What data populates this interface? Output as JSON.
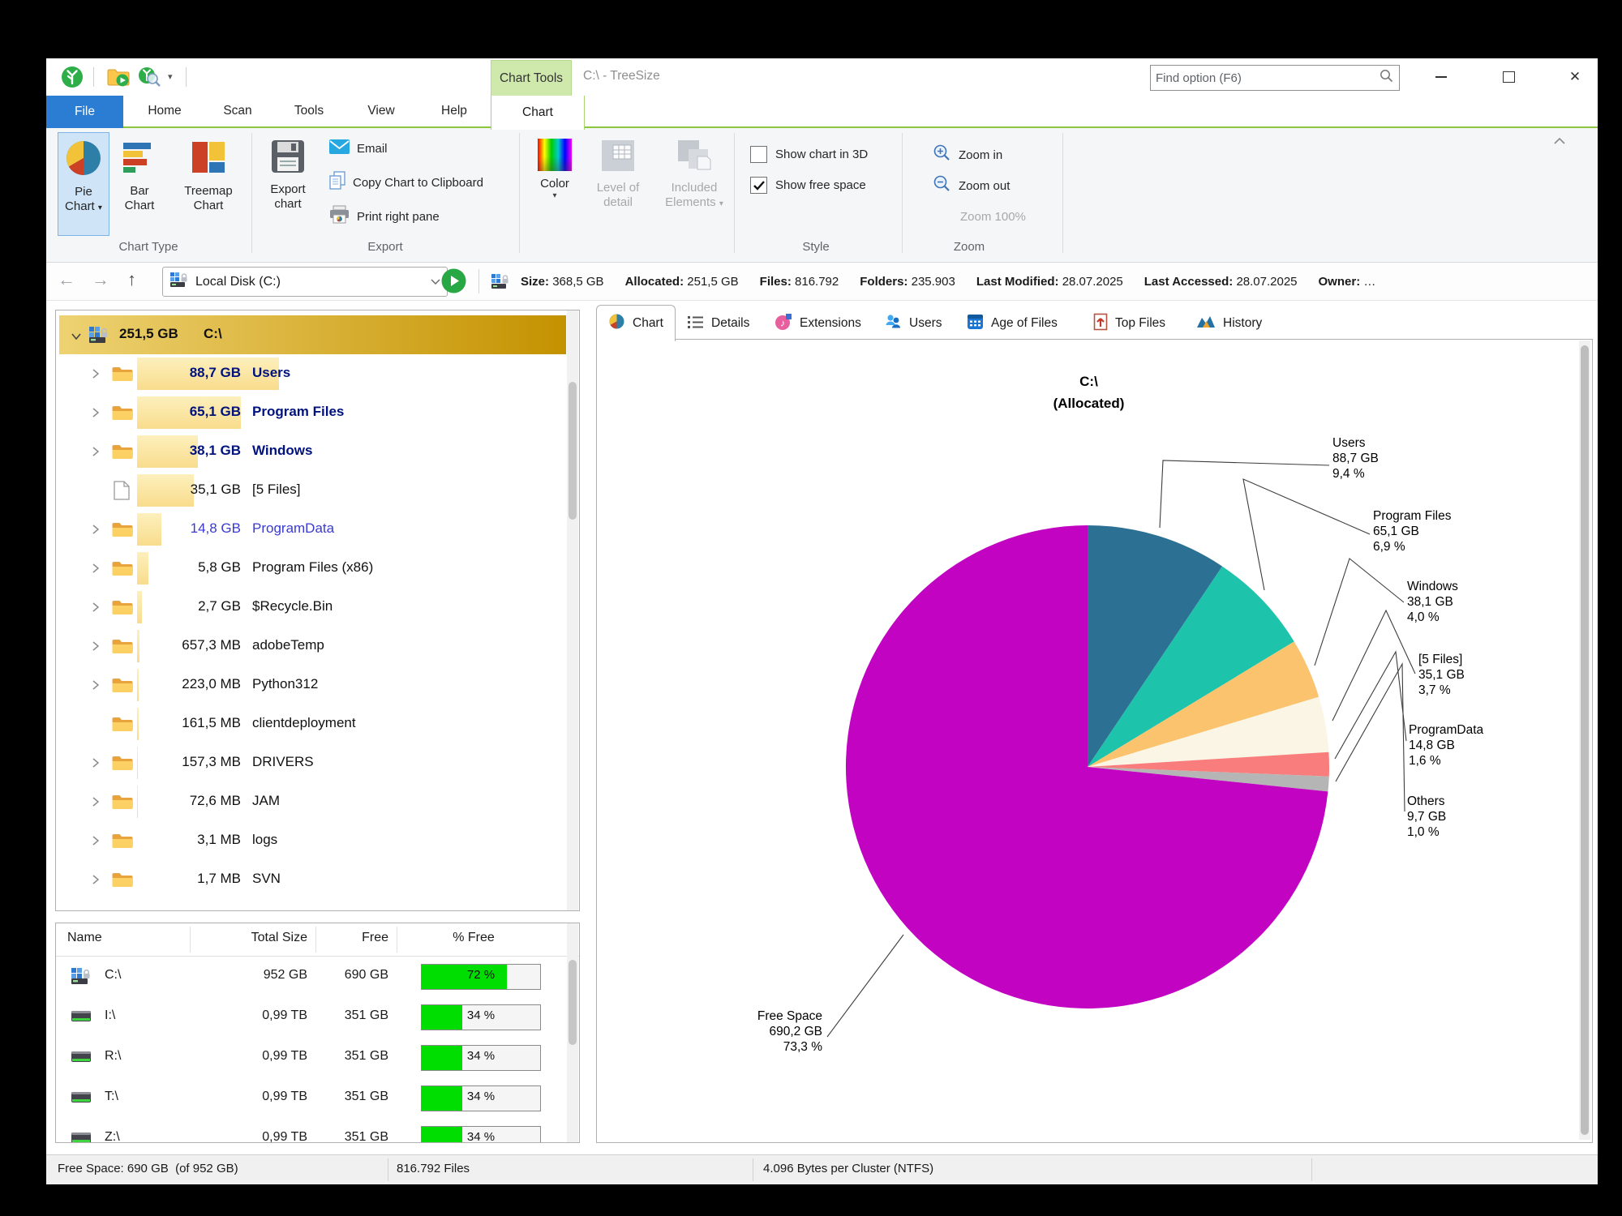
{
  "titlebar": {
    "contextual_tab": "Chart Tools",
    "title": "C:\\ - TreeSize",
    "find_placeholder": "Find option (F6)"
  },
  "menubar": {
    "file": "File",
    "items": [
      "Home",
      "Scan",
      "Tools",
      "View",
      "Help"
    ],
    "chart_tab": "Chart"
  },
  "ribbon": {
    "pie": {
      "l1": "Pie",
      "l2": "Chart"
    },
    "bar": {
      "l1": "Bar",
      "l2": "Chart"
    },
    "treemap": {
      "l1": "Treemap",
      "l2": "Chart"
    },
    "export_btn": {
      "l1": "Export",
      "l2": "chart"
    },
    "email": "Email",
    "copy": "Copy Chart to Clipboard",
    "print": "Print right pane",
    "color": "Color",
    "level": {
      "l1": "Level of",
      "l2": "detail"
    },
    "included": {
      "l1": "Included",
      "l2": "Elements"
    },
    "cb_3d": "Show chart in 3D",
    "cb_free": "Show free space",
    "zoom_in": "Zoom in",
    "zoom_out": "Zoom out",
    "zoom_100": "Zoom 100%",
    "labels": {
      "chart_type": "Chart Type",
      "export": "Export",
      "style": "Style",
      "zoom": "Zoom"
    }
  },
  "addressbar": {
    "drive": "Local Disk (C:)",
    "stats": [
      {
        "label": "Size:",
        "value": "368,5 GB"
      },
      {
        "label": "Allocated:",
        "value": "251,5 GB"
      },
      {
        "label": "Files:",
        "value": "816.792"
      },
      {
        "label": "Folders:",
        "value": "235.903"
      },
      {
        "label": "Last Modified:",
        "value": "28.07.2025"
      },
      {
        "label": "Last Accessed:",
        "value": "28.07.2025"
      },
      {
        "label": "Owner:",
        "value": "…"
      }
    ]
  },
  "tree": {
    "root": {
      "size": "251,5 GB",
      "name": "C:\\"
    },
    "rows": [
      {
        "size": "88,7 GB",
        "name": "Users",
        "bar": 175
      },
      {
        "size": "65,1 GB",
        "name": "Program Files",
        "bar": 128
      },
      {
        "size": "38,1 GB",
        "name": "Windows",
        "bar": 75
      },
      {
        "size": "35,1 GB",
        "name": "[5 Files]",
        "bar": 70
      },
      {
        "size": "14,8 GB",
        "name": "ProgramData",
        "bar": 30
      },
      {
        "size": "5,8 GB",
        "name": "Program Files (x86)",
        "bar": 14
      },
      {
        "size": "2,7 GB",
        "name": "$Recycle.Bin",
        "bar": 6
      },
      {
        "size": "657,3 MB",
        "name": "adobeTemp",
        "bar": 3
      },
      {
        "size": "223,0 MB",
        "name": "Python312",
        "bar": 2
      },
      {
        "size": "161,5 MB",
        "name": "clientdeployment",
        "bar": 2
      },
      {
        "size": "157,3 MB",
        "name": "DRIVERS",
        "bar": 1
      },
      {
        "size": "72,6 MB",
        "name": "JAM",
        "bar": 1
      },
      {
        "size": "3,1 MB",
        "name": "logs",
        "bar": 0
      },
      {
        "size": "1,7 MB",
        "name": "SVN",
        "bar": 0
      }
    ]
  },
  "drives": {
    "headers": [
      "Name",
      "Total Size",
      "Free",
      "% Free"
    ],
    "rows": [
      {
        "name": "C:\\",
        "total": "952 GB",
        "free": "690 GB",
        "pct": 72,
        "pct_label": "72 %"
      },
      {
        "name": "I:\\",
        "total": "0,99 TB",
        "free": "351 GB",
        "pct": 34,
        "pct_label": "34 %"
      },
      {
        "name": "R:\\",
        "total": "0,99 TB",
        "free": "351 GB",
        "pct": 34,
        "pct_label": "34 %"
      },
      {
        "name": "T:\\",
        "total": "0,99 TB",
        "free": "351 GB",
        "pct": 34,
        "pct_label": "34 %"
      },
      {
        "name": "Z:\\",
        "total": "0,99 TB",
        "free": "351 GB",
        "pct": 34,
        "pct_label": "34 %"
      }
    ]
  },
  "tabs": {
    "chart": "Chart",
    "details": "Details",
    "extensions": "Extensions",
    "users": "Users",
    "age": "Age of Files",
    "top": "Top Files",
    "history": "History"
  },
  "chart_data": {
    "type": "pie",
    "title": "C:\\",
    "subtitle": "(Allocated)",
    "start_angle_deg": 0,
    "direction": "clockwise",
    "legend_position": "callout-labels",
    "slices": [
      {
        "label": "Users",
        "size": "88,7 GB",
        "pct": 9.4,
        "pct_label": "9,4 %",
        "color": "#2c7193"
      },
      {
        "label": "Program Files",
        "size": "65,1 GB",
        "pct": 6.9,
        "pct_label": "6,9 %",
        "color": "#1ec3ab"
      },
      {
        "label": "Windows",
        "size": "38,1 GB",
        "pct": 4.0,
        "pct_label": "4,0 %",
        "color": "#fcc36e"
      },
      {
        "label": "[5 Files]",
        "size": "35,1 GB",
        "pct": 3.7,
        "pct_label": "3,7 %",
        "color": "#fbf5e6"
      },
      {
        "label": "ProgramData",
        "size": "14,8 GB",
        "pct": 1.6,
        "pct_label": "1,6 %",
        "color": "#fa7d7d"
      },
      {
        "label": "Others",
        "size": "9,7 GB",
        "pct": 1.0,
        "pct_label": "1,0 %",
        "color": "#b5b5b5"
      },
      {
        "label": "Free Space",
        "size": "690,2 GB",
        "pct": 73.3,
        "pct_label": "73,3 %",
        "color": "#c203c2"
      }
    ]
  },
  "statusbar": {
    "s1": "Free Space: 690 GB  (of 952 GB)",
    "s2": "816.792 Files",
    "s3": "4.096 Bytes per Cluster (NTFS)"
  }
}
